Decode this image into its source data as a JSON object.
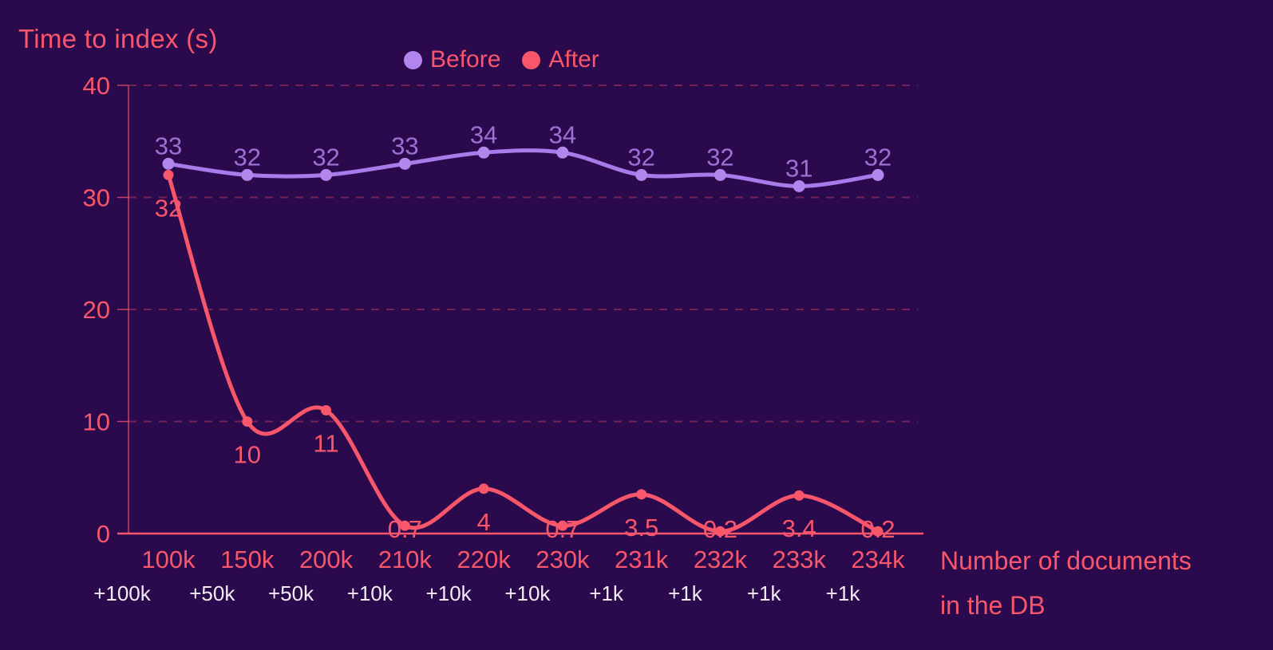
{
  "chart_data": {
    "type": "line",
    "title": "Time to index (s)",
    "xlabel": "Number of documents in the DB",
    "xlabel_lines": [
      "Number of documents",
      "in the DB"
    ],
    "ylabel": "Time to index (s)",
    "categories": [
      "100k",
      "150k",
      "200k",
      "210k",
      "220k",
      "230k",
      "231k",
      "232k",
      "233k",
      "234k"
    ],
    "increments": [
      "+100k",
      "+50k",
      "+50k",
      "+10k",
      "+10k",
      "+10k",
      "+1k",
      "+1k",
      "+1k",
      "+1k"
    ],
    "y_ticks": [
      0,
      10,
      20,
      30,
      40
    ],
    "ylim": [
      0,
      40
    ],
    "grid": "horizontal-dashed",
    "legend_position": "top-center",
    "smoothing": "curved",
    "series": [
      {
        "name": "Before",
        "values": [
          33,
          32,
          32,
          33,
          34,
          34,
          32,
          32,
          31,
          32
        ],
        "color": "#a77cea",
        "point_color": "#b286ec",
        "label_color": "#9c71d4",
        "label_side": "above"
      },
      {
        "name": "After",
        "values": [
          32,
          10,
          11,
          0.7,
          4,
          0.7,
          3.5,
          0.2,
          3.4,
          0.2
        ],
        "color": "#f8566b",
        "point_color": "#f8566b",
        "label_color": "#f8566b",
        "label_side": "below"
      }
    ],
    "colors": {
      "background": "#2a0a4c",
      "accent": "#f8566b",
      "axis": "rgba(248,86,107,0.75)",
      "grid": "rgba(248,86,107,0.35)",
      "increments_text": "#f2ecf4"
    }
  }
}
